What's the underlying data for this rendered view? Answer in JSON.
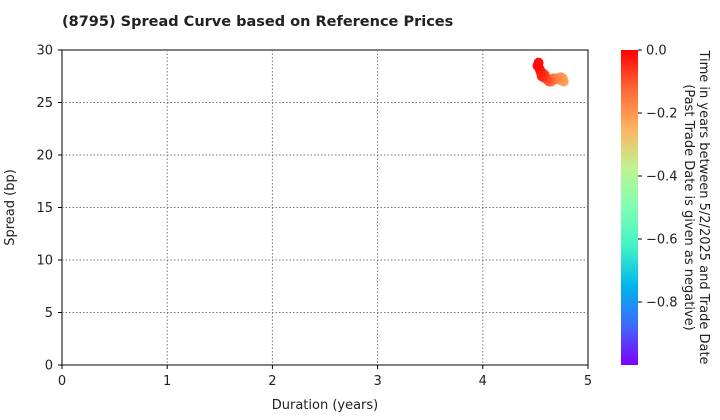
{
  "chart_data": {
    "type": "scatter",
    "title": "(8795)   Spread Curve based on Reference Prices",
    "xlabel": "Duration (years)",
    "ylabel": "Spread (bp)",
    "xlim": [
      0,
      5
    ],
    "ylim": [
      0,
      30
    ],
    "xticks": [
      "0",
      "1",
      "2",
      "3",
      "4",
      "5"
    ],
    "yticks": [
      "0",
      "5",
      "10",
      "15",
      "20",
      "25",
      "30"
    ],
    "grid": true,
    "colorbar": {
      "label_line1": "Time in years between 5/2/2025 and Trade Date",
      "label_line2": "(Past Trade Date is given as negative)",
      "range": [
        -1.0,
        0.0
      ],
      "ticks": [
        "0.0",
        "−0.2",
        "−0.4",
        "−0.6",
        "−0.8"
      ],
      "tick_values": [
        0.0,
        -0.2,
        -0.4,
        -0.6,
        -0.8
      ],
      "colors": [
        "#7f00ff",
        "#3e69fa",
        "#00b5eb",
        "#41f3c6",
        "#7ffeb2",
        "#c0f392",
        "#ffb360",
        "#ff6a36",
        "#ff0000"
      ]
    },
    "points": [
      {
        "x": 4.52,
        "y": 28.5,
        "t": -0.01
      },
      {
        "x": 4.53,
        "y": 28.8,
        "t": -0.02
      },
      {
        "x": 4.54,
        "y": 28.2,
        "t": -0.03
      },
      {
        "x": 4.55,
        "y": 27.9,
        "t": -0.04
      },
      {
        "x": 4.56,
        "y": 27.5,
        "t": -0.05
      },
      {
        "x": 4.57,
        "y": 27.8,
        "t": -0.06
      },
      {
        "x": 4.58,
        "y": 27.4,
        "t": -0.07
      },
      {
        "x": 4.59,
        "y": 27.6,
        "t": -0.08
      },
      {
        "x": 4.6,
        "y": 27.3,
        "t": -0.09
      },
      {
        "x": 4.61,
        "y": 27.2,
        "t": -0.1
      },
      {
        "x": 4.62,
        "y": 27.1,
        "t": -0.11
      },
      {
        "x": 4.63,
        "y": 27.0,
        "t": -0.12
      },
      {
        "x": 4.64,
        "y": 27.2,
        "t": -0.13
      },
      {
        "x": 4.65,
        "y": 27.0,
        "t": -0.14
      },
      {
        "x": 4.66,
        "y": 27.1,
        "t": -0.15
      },
      {
        "x": 4.67,
        "y": 27.3,
        "t": -0.16
      },
      {
        "x": 4.68,
        "y": 27.2,
        "t": -0.17
      },
      {
        "x": 4.7,
        "y": 27.3,
        "t": -0.18
      },
      {
        "x": 4.72,
        "y": 27.2,
        "t": -0.19
      },
      {
        "x": 4.74,
        "y": 27.4,
        "t": -0.2
      },
      {
        "x": 4.75,
        "y": 27.1,
        "t": -0.21
      },
      {
        "x": 4.76,
        "y": 27.3,
        "t": -0.22
      },
      {
        "x": 4.77,
        "y": 27.0,
        "t": -0.23
      }
    ]
  }
}
